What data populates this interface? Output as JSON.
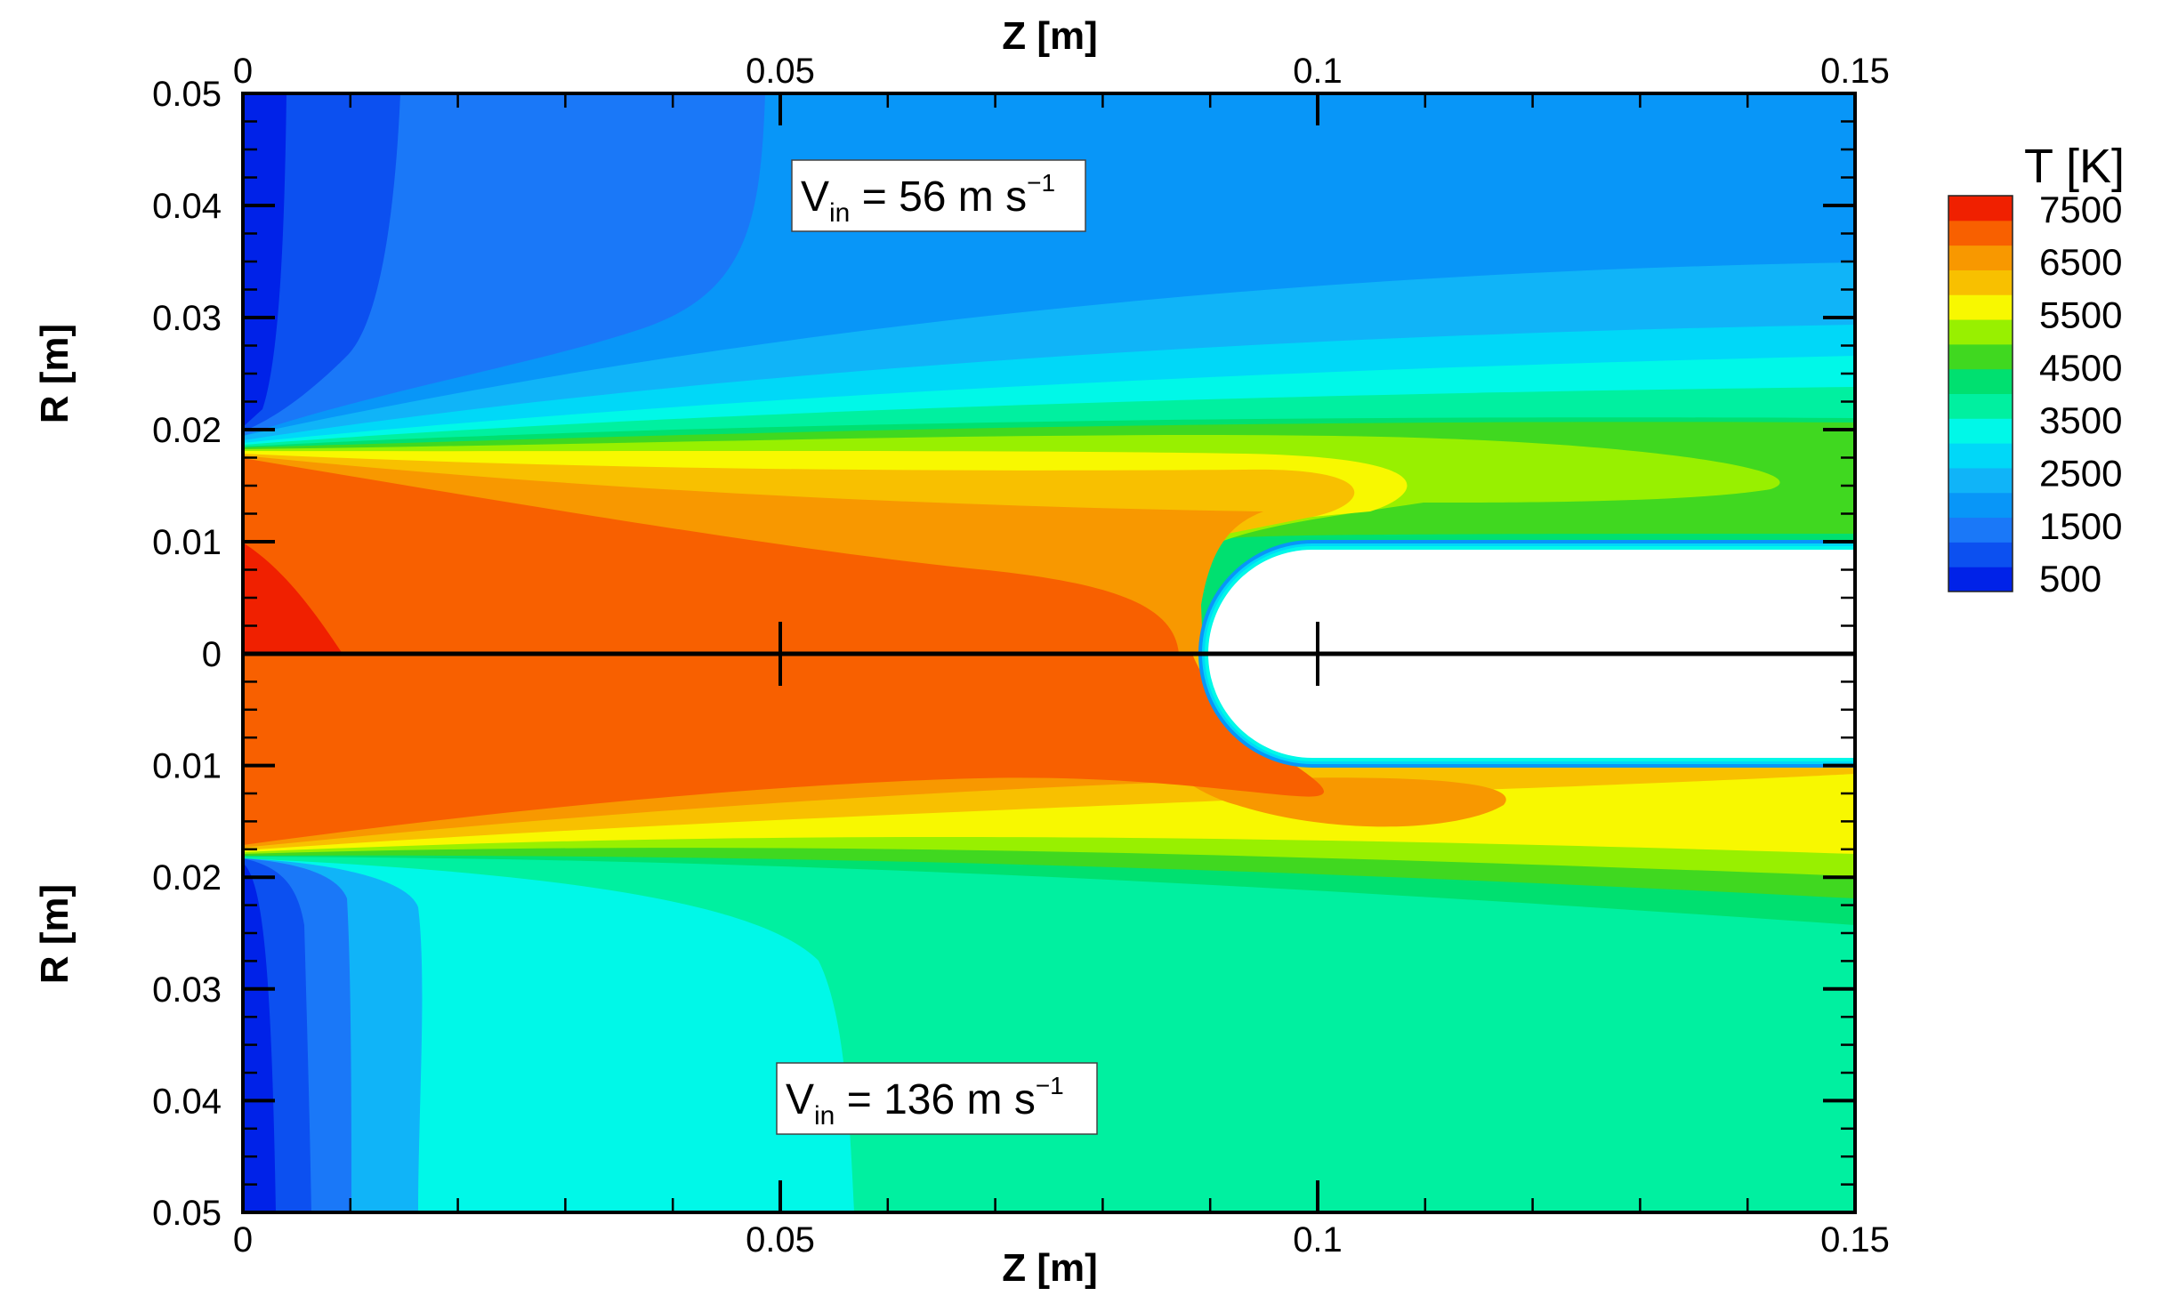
{
  "chart_data": {
    "type": "heatmap",
    "subtype": "filled-contour",
    "x_axis": {
      "label": "Z [m]",
      "range": [
        0,
        0.15
      ],
      "ticks": [
        0,
        0.05,
        0.1,
        0.15
      ],
      "tick_labels": [
        "0",
        "0.05",
        "0.1",
        "0.15"
      ]
    },
    "y_axis": {
      "label": "R [m]",
      "range": [
        0,
        0.05
      ],
      "ticks": [
        0.05,
        0.04,
        0.03,
        0.02,
        0.01,
        0,
        0.01,
        0.02,
        0.03,
        0.04,
        0.05
      ],
      "tick_labels": [
        "0.05",
        "0.04",
        "0.03",
        "0.02",
        "0.01",
        "0",
        "0.01",
        "0.02",
        "0.03",
        "0.04",
        "0.05"
      ]
    },
    "panels": [
      {
        "position": "top",
        "annotation": {
          "base": "V",
          "sub": "in",
          "mid": " = 56 m s",
          "sup": "−1"
        }
      },
      {
        "position": "bottom",
        "annotation": {
          "base": "V",
          "sub": "in",
          "mid": " = 136 m s",
          "sup": "−1"
        }
      }
    ],
    "colorbar": {
      "title": "T [K]",
      "levels": [
        500,
        1000,
        1500,
        2000,
        2500,
        3000,
        3500,
        4000,
        4500,
        5000,
        5500,
        6000,
        6500,
        7000,
        7500
      ],
      "labels": [
        "7500",
        "6500",
        "5500",
        "4500",
        "3500",
        "2500",
        "1500",
        "500"
      ],
      "colors": [
        "#0022e8",
        "#0c50f0",
        "#1a78f8",
        "#0896f8",
        "#10b4f8",
        "#00d8f8",
        "#00f8e8",
        "#00f0a0",
        "#00e070",
        "#40d820",
        "#98f000",
        "#f8f800",
        "#f8c000",
        "#f89800",
        "#f86000",
        "#f02000"
      ],
      "placement": "right"
    },
    "obstacle": {
      "z_tip": 0.09,
      "radius": 0.009
    },
    "grid": false
  }
}
